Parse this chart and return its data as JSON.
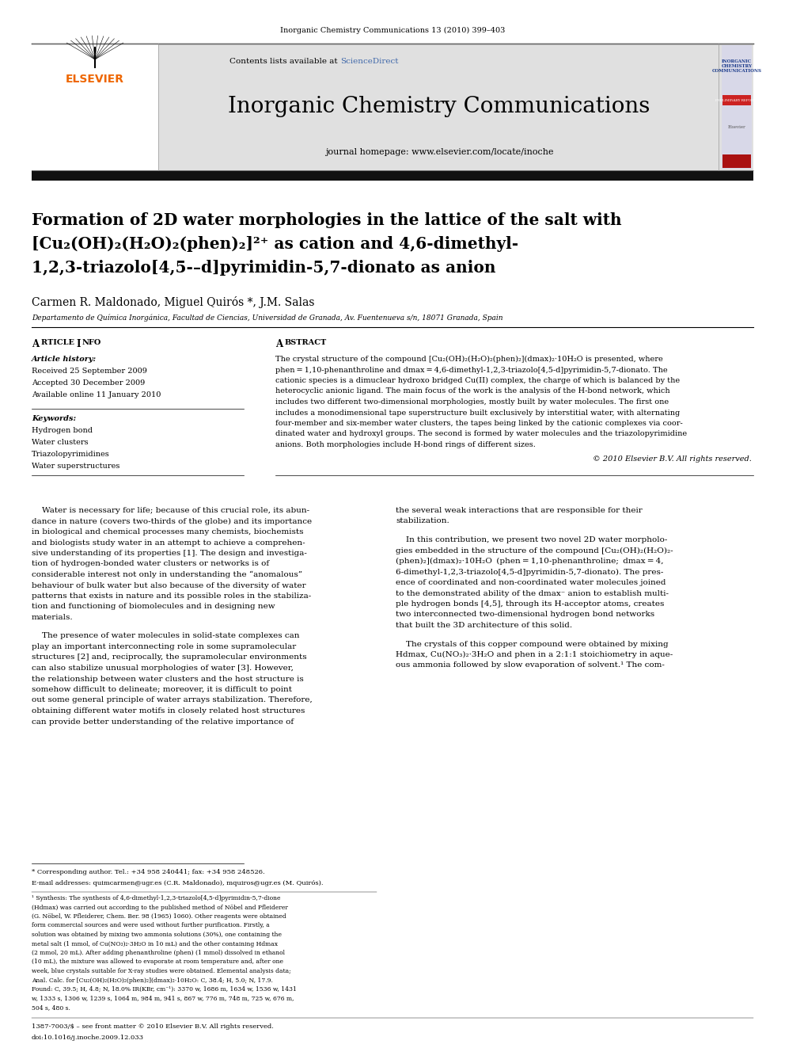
{
  "page_width": 9.92,
  "page_height": 13.23,
  "dpi": 100,
  "bg_color": "#ffffff",
  "header_top_text": "Inorganic Chemistry Communications 13 (2010) 399–403",
  "header_bar_color": "#e0e0e0",
  "journal_title": "Inorganic Chemistry Communications",
  "journal_homepage": "journal homepage: www.elsevier.com/locate/inoche",
  "contents_text": "Contents lists available at ",
  "science_direct": "ScienceDirect",
  "science_direct_color": "#4169aa",
  "elsevier_color": "#ee6600",
  "black_bar_color": "#111111",
  "article_title_line1": "Formation of 2D water morphologies in the lattice of the salt with",
  "article_title_line2": "[Cu₂(OH)₂(H₂O)₂(phen)₂]²⁺ as cation and 4,6-dimethyl-",
  "article_title_line3": "1,2,3-triazolo[4,5-–d]pyrimidin-5,7-dionato as anion",
  "authors": "Carmen R. Maldonado, Miguel Quirós *, J.M. Salas",
  "affiliation": "Departamento de Química Inorgánica, Facultad de Ciencias, Universidad de Granada, Av. Fuentenueva s/n, 18071 Granada, Spain",
  "article_info_label": "ARTICLE INFO",
  "abstract_label": "ABSTRACT",
  "article_history_label": "Article history:",
  "received": "Received 25 September 2009",
  "accepted": "Accepted 30 December 2009",
  "available": "Available online 11 January 2010",
  "keywords_label": "Keywords:",
  "keywords": [
    "Hydrogen bond",
    "Water clusters",
    "Triazolopyrimidines",
    "Water superstructures"
  ],
  "abstract_lines": [
    "The crystal structure of the compound [Cu₂(OH)₂(H₂O)₂(phen)₂](dmax)₂·10H₂O is presented, where",
    "phen = 1,10-phenanthroline and dmax = 4,6-dimethyl-1,2,3-triazolo[4,5-d]pyrimidin-5,7-dionato. The",
    "cationic species is a dimuclear hydroxo bridged Cu(II) complex, the charge of which is balanced by the",
    "heterocyclic anionic ligand. The main focus of the work is the analysis of the H-bond network, which",
    "includes two different two-dimensional morphologies, mostly built by water molecules. The first one",
    "includes a monodimensional tape superstructure built exclusively by interstitial water, with alternating",
    "four-member and six-member water clusters, the tapes being linked by the cationic complexes via coor-",
    "dinated water and hydroxyl groups. The second is formed by water molecules and the triazolopyrimidine",
    "anions. Both morphologies include H-bond rings of different sizes."
  ],
  "copyright": "© 2010 Elsevier B.V. All rights reserved.",
  "body_left_lines1": [
    "    Water is necessary for life; because of this crucial role, its abun-",
    "dance in nature (covers two-thirds of the globe) and its importance",
    "in biological and chemical processes many chemists, biochemists",
    "and biologists study water in an attempt to achieve a comprehen-",
    "sive understanding of its properties [1]. The design and investiga-",
    "tion of hydrogen-bonded water clusters or networks is of",
    "considerable interest not only in understanding the “anomalous”",
    "behaviour of bulk water but also because of the diversity of water",
    "patterns that exists in nature and its possible roles in the stabiliza-",
    "tion and functioning of biomolecules and in designing new",
    "materials."
  ],
  "body_left_lines2": [
    "    The presence of water molecules in solid-state complexes can",
    "play an important interconnecting role in some supramolecular",
    "structures [2] and, reciprocally, the supramolecular environments",
    "can also stabilize unusual morphologies of water [3]. However,",
    "the relationship between water clusters and the host structure is",
    "somehow difficult to delineate; moreover, it is difficult to point",
    "out some general principle of water arrays stabilization. Therefore,",
    "obtaining different water motifs in closely related host structures",
    "can provide better understanding of the relative importance of"
  ],
  "body_right_lines1": [
    "the several weak interactions that are responsible for their",
    "stabilization."
  ],
  "body_right_lines2": [
    "    In this contribution, we present two novel 2D water morpholo-",
    "gies embedded in the structure of the compound [Cu₂(OH)₂(H₂O)₂-",
    "(phen)₂](dmax)₂·10H₂O  (phen = 1,10-phenanthroline;  dmax = 4,",
    "6-dimethyl-1,2,3-triazolo[4,5-d]pyrimidin-5,7-dionato). The pres-",
    "ence of coordinated and non-coordinated water molecules joined",
    "to the demonstrated ability of the dmax⁻ anion to establish multi-",
    "ple hydrogen bonds [4,5], through its H-acceptor atoms, creates",
    "two interconnected two-dimensional hydrogen bond networks",
    "that built the 3D architecture of this solid."
  ],
  "body_right_lines3": [
    "    The crystals of this copper compound were obtained by mixing",
    "Hdmax, Cu(NO₃)₂·3H₂O and phen in a 2:1:1 stoichiometry in aque-",
    "ous ammonia followed by slow evaporation of solvent.¹ The com-"
  ],
  "corresp_text": "* Corresponding author. Tel.: +34 958 240441; fax: +34 958 248526.",
  "email_text": "E-mail addresses: quimcarmen@ugr.es (C.R. Maldonado), mquiros@ugr.es (M. Quirós).",
  "synth_lines": [
    "¹ Synthesis: The synthesis of 4,6-dimethyl-1,2,3-triazolo[4,5-d]pyrimidin-5,7-dione",
    "(Hdmax) was carried out according to the published method of Nöbel and Pfleiderer",
    "(G. Nöbel, W. Pfleiderer, Chem. Ber. 98 (1965) 1060). Other reagents were obtained",
    "form commercial sources and were used without further purification. Firstly, a",
    "solution was obtained by mixing two ammonia solutions (30%), one containing the",
    "metal salt (1 mmol, of Cu(NO₃)₂·3H₂O in 10 mL) and the other containing Hdmax",
    "(2 mmol, 20 mL). After adding phenanthroline (phen) (1 mmol) dissolved in ethanol",
    "(10 mL), the mixture was allowed to evaporate at room temperature and, after one",
    "week, blue crystals suitable for X-ray studies were obtained. Elemental analysis data;",
    "Anal. Calc. for [Cu₂(OH)₂(H₂O)₂(phen)₂](dmax)₂·10H₂O: C, 38.4; H, 5.0; N, 17.9.",
    "Found: C, 39.5; H, 4.8; N, 18.0% IR(KBr, cm⁻¹): 3370 w, 1686 m, 1634 w, 1536 w, 1431",
    "w, 1333 s, 1306 w, 1239 s, 1064 m, 984 m, 941 s, 867 w, 776 m, 748 m, 725 w, 676 m,",
    "504 s, 480 s."
  ],
  "footnote_issn": "1387-7003/$ – see front matter © 2010 Elsevier B.V. All rights reserved.",
  "footnote_doi": "doi:10.1016/j.inoche.2009.12.033"
}
